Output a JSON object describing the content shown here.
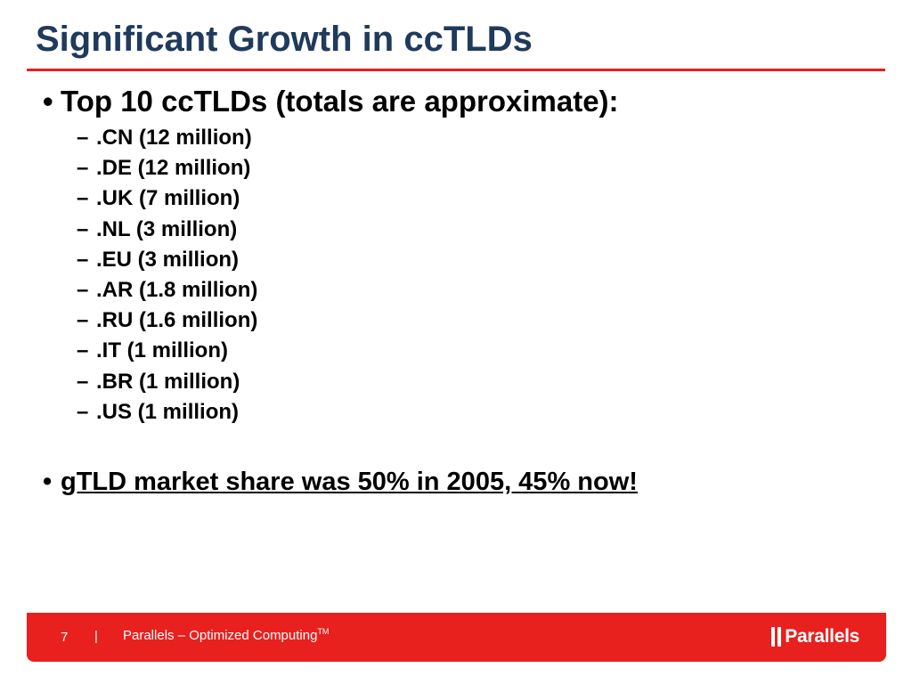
{
  "slide": {
    "title": "Significant Growth in ccTLDs",
    "bullets": [
      {
        "text": "Top 10 ccTLDs (totals are approximate):",
        "sub_items": [
          ".CN (12 million)",
          ".DE (12 million)",
          ".UK (7 million)",
          ".NL (3 million)",
          ".EU (3 million)",
          ".AR (1.8 million)",
          ".RU (1.6 million)",
          ".IT (1 million)",
          ".BR (1 million)",
          ".US (1 million)"
        ]
      },
      {
        "text": "gTLD market share was 50% in 2005, 45% now!",
        "underlined": true
      }
    ]
  },
  "footer": {
    "page_number": "7",
    "separator": "|",
    "tagline": "Parallels – Optimized Computing",
    "trademark": "TM",
    "logo_text": "Parallels"
  },
  "colors": {
    "accent": "#e8201e",
    "title": "#1f3a5c",
    "text": "#000000"
  },
  "icons": {
    "logo": "parallels-double-bar-icon"
  }
}
